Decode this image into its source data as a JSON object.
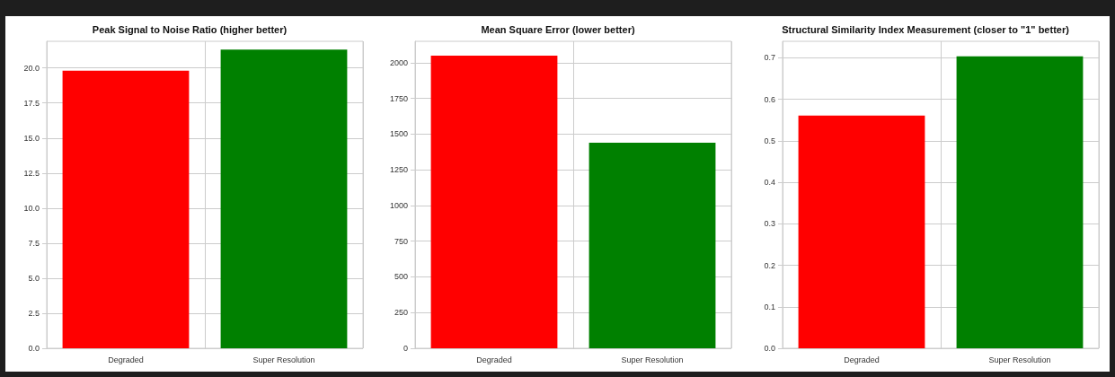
{
  "chart_data": [
    {
      "type": "bar",
      "title": "Peak Signal to Noise Ratio (higher better)",
      "categories": [
        "Degraded",
        "Super Resolution"
      ],
      "values": [
        19.8,
        21.3
      ],
      "colors": [
        "#ff0000",
        "#008000"
      ],
      "ylim": [
        0,
        21.9
      ],
      "yticks": [
        {
          "value": 0,
          "label": "0.0"
        },
        2.5,
        {
          "value": 5,
          "label": "5.0"
        },
        7.5,
        {
          "value": 10,
          "label": "10.0"
        },
        12.5,
        {
          "value": 15,
          "label": "15.0"
        },
        17.5,
        {
          "value": 20,
          "label": "20.0"
        }
      ],
      "grid": true
    },
    {
      "type": "bar",
      "title": "Mean Square Error (lower better)",
      "categories": [
        "Degraded",
        "Super Resolution"
      ],
      "values": [
        2050,
        1440
      ],
      "colors": [
        "#ff0000",
        "#008000"
      ],
      "ylim": [
        0,
        2150
      ],
      "yticks": [
        0,
        250,
        500,
        750,
        1000,
        1250,
        1500,
        1750,
        2000
      ],
      "grid": true
    },
    {
      "type": "bar",
      "title": "Structural Similarity Index Measurement (closer to \"1\" better)",
      "categories": [
        "Degraded",
        "Super Resolution"
      ],
      "values": [
        0.561,
        0.704
      ],
      "colors": [
        "#ff0000",
        "#008000"
      ],
      "ylim": [
        0,
        0.74
      ],
      "yticks": [
        {
          "value": 0,
          "label": "0.0"
        },
        0.1,
        0.2,
        0.3,
        0.4,
        0.5,
        0.6,
        0.7
      ],
      "grid": true
    }
  ]
}
